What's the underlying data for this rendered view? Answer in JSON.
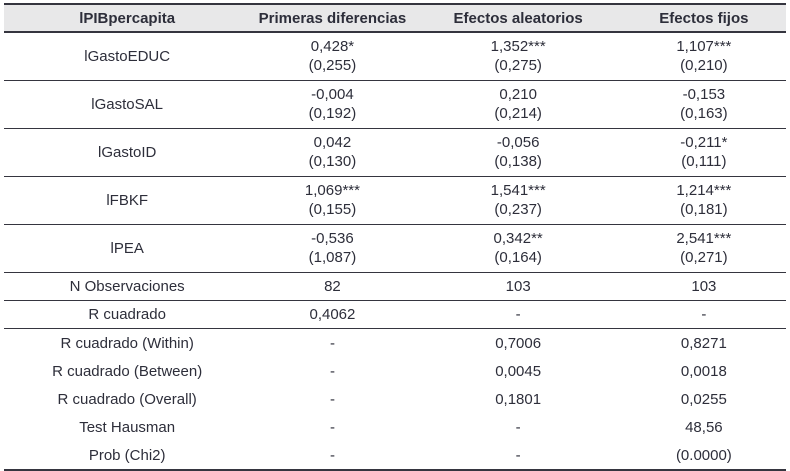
{
  "theme": {
    "header_bg": "#e8e8e9",
    "text_color": "#2d2e3a",
    "line_color": "#35353f"
  },
  "table": {
    "columns": [
      "lPIBpercapita",
      "Primeras diferencias",
      "Efectos aleatorios",
      "Efectos fijos"
    ],
    "coefficient_rows": [
      {
        "label": "lGastoEDUC",
        "cells": [
          {
            "coef": "0,428*",
            "se": "(0,255)"
          },
          {
            "coef": "1,352***",
            "se": "(0,275)"
          },
          {
            "coef": "1,107***",
            "se": "(0,210)"
          }
        ]
      },
      {
        "label": "lGastoSAL",
        "cells": [
          {
            "coef": "-0,004",
            "se": "(0,192)"
          },
          {
            "coef": "0,210",
            "se": "(0,214)"
          },
          {
            "coef": "-0,153",
            "se": "(0,163)"
          }
        ]
      },
      {
        "label": "lGastoID",
        "cells": [
          {
            "coef": "0,042",
            "se": "(0,130)"
          },
          {
            "coef": "-0,056",
            "se": "(0,138)"
          },
          {
            "coef": "-0,211*",
            "se": "(0,111)"
          }
        ]
      },
      {
        "label": "lFBKF",
        "cells": [
          {
            "coef": "1,069***",
            "se": "(0,155)"
          },
          {
            "coef": "1,541***",
            "se": "(0,237)"
          },
          {
            "coef": "1,214***",
            "se": "(0,181)"
          }
        ]
      },
      {
        "label": "lPEA",
        "cells": [
          {
            "coef": "-0,536",
            "se": "(1,087)"
          },
          {
            "coef": "0,342**",
            "se": "(0,164)"
          },
          {
            "coef": "2,541***",
            "se": "(0,271)"
          }
        ]
      }
    ],
    "stat_rows": [
      {
        "label": "N Observaciones",
        "values": [
          "82",
          "103",
          "103"
        ],
        "separator": "thin"
      },
      {
        "label": "R cuadrado",
        "values": [
          "0,4062",
          "-",
          "-"
        ],
        "separator": "thick"
      },
      {
        "label": "R cuadrado (Within)",
        "values": [
          "-",
          "0,7006",
          "0,8271"
        ],
        "separator": "none"
      },
      {
        "label": "R cuadrado (Between)",
        "values": [
          "-",
          "0,0045",
          "0,0018"
        ],
        "separator": "none"
      },
      {
        "label": "R cuadrado (Overall)",
        "values": [
          "-",
          "0,1801",
          "0,0255"
        ],
        "separator": "none"
      },
      {
        "label": "Test Hausman",
        "values": [
          "-",
          "-",
          "48,56"
        ],
        "separator": "none"
      },
      {
        "label": "Prob (Chi2)",
        "values": [
          "-",
          "-",
          "(0.0000)"
        ],
        "separator": "none"
      }
    ]
  }
}
